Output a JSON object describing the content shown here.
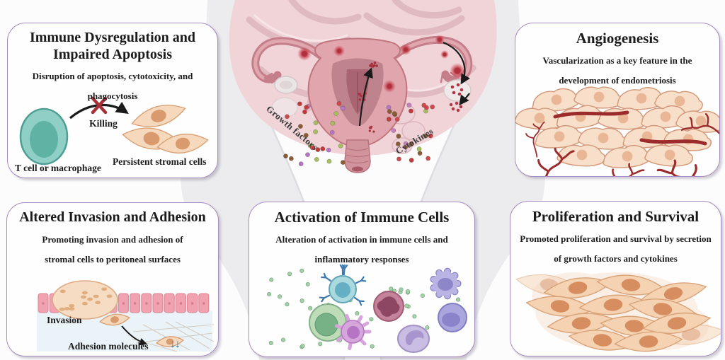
{
  "panels": {
    "immune_dysregulation": {
      "title": "Immune Dysregulation and Impaired Apoptosis",
      "subtitle": "Disruption of apoptosis, cytotoxicity, and phagocytosis",
      "killing_label": "Killing",
      "t_cell_label": "T cell or macrophage",
      "stromal_label": "Persistent stromal cells"
    },
    "angiogenesis": {
      "title": "Angiogenesis",
      "subtitle": "Vascularization as a key feature in the development of endometriosis"
    },
    "invasion_adhesion": {
      "title": "Altered Invasion and Adhesion",
      "subtitle": "Promoting invasion and adhesion of stromal cells to peritoneal surfaces",
      "invasion_label": "Invasion",
      "adhesion_label": "Adhesion molecules",
      "adhesion_arrows_glyph": "↓↓"
    },
    "immune_activation": {
      "title": "Activation of Immune Cells",
      "subtitle": "Alteration of activation in immune cells and inflammatory responses"
    },
    "proliferation_survival": {
      "title": "Proliferation and Survival",
      "subtitle": "Promoted proliferation and survival by secretion of growth factors and cytokines"
    }
  },
  "center": {
    "growth_factors_label": "Growth factors",
    "cytokines_label": "Cytokines"
  },
  "colors": {
    "panel_border": "#a58bbf",
    "text": "#1b1b1b",
    "lesion_red": "#b7303e",
    "vessel_red": "#9c2b2c",
    "molecule_palette": [
      "#c23b3b",
      "#a9bf5e",
      "#b678c4",
      "#8b5c33",
      "#c77fc0",
      "#d04848"
    ],
    "cytokine_dot": "#a4cfa9",
    "adhesion_arrow_blue": "#2c7fae",
    "stromal_cell_fill": "#f6d9bd",
    "stromal_cell_stroke": "#d9a176",
    "teal_cell_fill": "#8fcfc5"
  }
}
